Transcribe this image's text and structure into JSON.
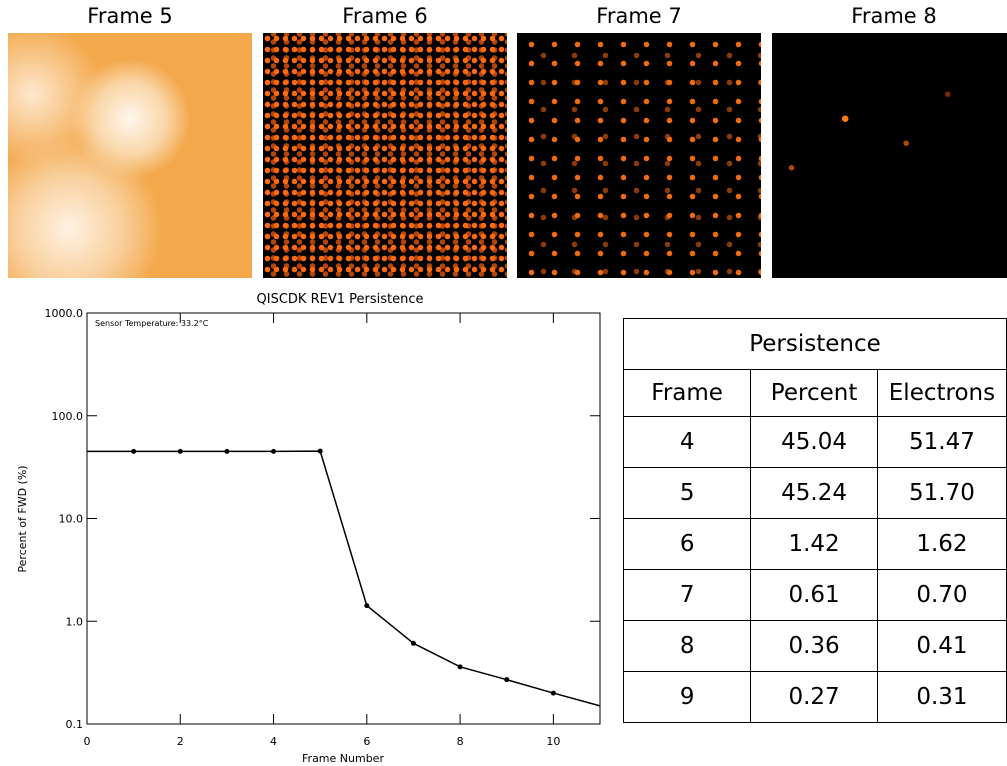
{
  "frames": [
    "Frame 5",
    "Frame 6",
    "Frame 7",
    "Frame 8"
  ],
  "chart_data": {
    "type": "line",
    "title": "QISCDK REV1 Persistence",
    "annotation": "Sensor Temperature: 33.2°C",
    "x_label": "Frame Number",
    "y_label": "Percent of FWD (%)",
    "x": [
      0,
      1,
      2,
      3,
      4,
      5,
      6,
      7,
      8,
      9,
      10,
      11
    ],
    "values": [
      45,
      45,
      45,
      45,
      45.04,
      45.24,
      1.42,
      0.61,
      0.36,
      0.27,
      0.2,
      0.15
    ],
    "color": "#000000",
    "xlim": [
      0,
      11
    ],
    "ylim": [
      0.1,
      1000
    ],
    "log_y": true,
    "xticks": [
      0,
      2,
      4,
      6,
      8,
      10
    ],
    "yticks": [
      {
        "value": 1000,
        "label": "1000.0"
      },
      {
        "value": 100,
        "label": "100.0"
      },
      {
        "value": 10,
        "label": "10.0"
      },
      {
        "value": 1,
        "label": "1.0"
      },
      0.1
    ]
  },
  "table": {
    "title": "Persistence",
    "headers": [
      "Frame",
      "Percent",
      "Electrons"
    ],
    "rows": [
      [
        "4",
        "45.04",
        "51.47"
      ],
      [
        "5",
        "45.24",
        "51.70"
      ],
      [
        "6",
        "1.42",
        "1.62"
      ],
      [
        "7",
        "0.61",
        "0.70"
      ],
      [
        "8",
        "0.36",
        "0.41"
      ],
      [
        "9",
        "0.27",
        "0.31"
      ]
    ]
  }
}
